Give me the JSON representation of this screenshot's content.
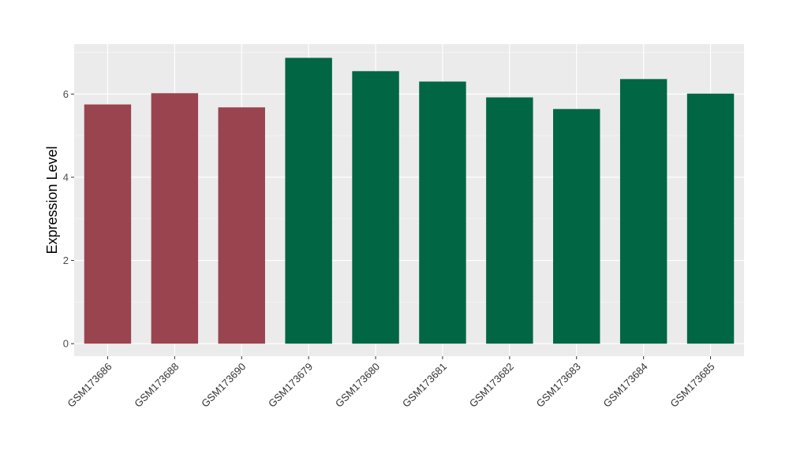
{
  "chart_data": {
    "type": "bar",
    "title": "",
    "xlabel": "",
    "ylabel": "Expression Level",
    "ylim": [
      -0.3,
      7.2
    ],
    "yticks": [
      0,
      2,
      4,
      6
    ],
    "grid": true,
    "legend": "none",
    "categories": [
      "GSM173686",
      "GSM173688",
      "GSM173690",
      "GSM173679",
      "GSM173680",
      "GSM173681",
      "GSM173682",
      "GSM173683",
      "GSM173684",
      "GSM173685"
    ],
    "values": [
      5.75,
      6.02,
      5.68,
      6.87,
      6.55,
      6.3,
      5.92,
      5.64,
      6.36,
      6.01
    ],
    "groups": [
      0,
      0,
      0,
      1,
      1,
      1,
      1,
      1,
      1,
      1
    ],
    "colors": {
      "group_0": "#99444f",
      "group_1": "#006644",
      "panel": "#ebebeb",
      "grid_major": "#ffffff",
      "grid_minor": "#f5f5f5"
    }
  }
}
